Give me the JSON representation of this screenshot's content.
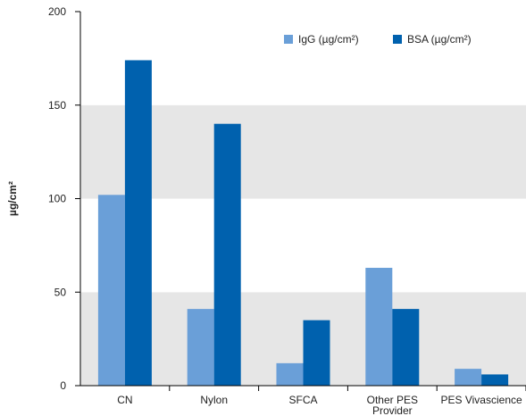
{
  "chart_data": {
    "type": "bar",
    "categories": [
      "CN",
      "Nylon",
      "SFCA",
      "Other PES\nProvider",
      "PES Vivascience"
    ],
    "series": [
      {
        "name": "IgG (µg/cm²)",
        "values": [
          102,
          41,
          12,
          63,
          9
        ],
        "color": "#6a9fd8"
      },
      {
        "name": "BSA (µg/cm²)",
        "values": [
          174,
          140,
          35,
          41,
          6
        ],
        "color": "#0061ae"
      }
    ],
    "ylabel": "µg/cm²",
    "yticks": [
      0,
      50,
      100,
      150,
      200
    ],
    "ylim": [
      0,
      200
    ],
    "band_color": "#e6e6e6",
    "legend_position": "top-right"
  }
}
